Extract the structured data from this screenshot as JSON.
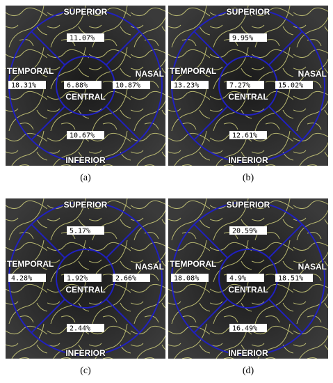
{
  "panels": [
    {
      "caption": "(a)",
      "labels": {
        "superior": "SUPERIOR",
        "temporal": "TEMPORAL",
        "nasal": "NASAL",
        "inferior": "INFERIOR",
        "central": "CENTRAL"
      },
      "values": {
        "superior": "11.07%",
        "temporal": "18.31%",
        "central": "6.88%",
        "nasal": "10.87%",
        "inferior": "10.67%"
      }
    },
    {
      "caption": "(b)",
      "labels": {
        "superior": "SUPERIOR",
        "temporal": "TEMPORAL",
        "nasal": "NASAL",
        "inferior": "INFERIOR",
        "central": "CENTRAL"
      },
      "values": {
        "superior": "9.95%",
        "temporal": "13.23%",
        "central": "7.27%",
        "nasal": "15.02%",
        "inferior": "12.61%"
      }
    },
    {
      "caption": "(c)",
      "labels": {
        "superior": "SUPERIOR",
        "temporal": "TEMPORAL",
        "nasal": "NASAL",
        "inferior": "INFERIOR",
        "central": "CENTRAL"
      },
      "values": {
        "superior": "5.17%",
        "temporal": "4.28%",
        "central": "1.92%",
        "nasal": "2.66%",
        "inferior": "2.44%"
      }
    },
    {
      "caption": "(d)",
      "labels": {
        "superior": "SUPERIOR",
        "temporal": "TEMPORAL",
        "nasal": "NASAL",
        "inferior": "INFERIOR",
        "central": "CENTRAL"
      },
      "values": {
        "superior": "20.59%",
        "temporal": "18.08%",
        "central": "4.9%",
        "nasal": "18.51%",
        "inferior": "16.49%"
      }
    }
  ]
}
